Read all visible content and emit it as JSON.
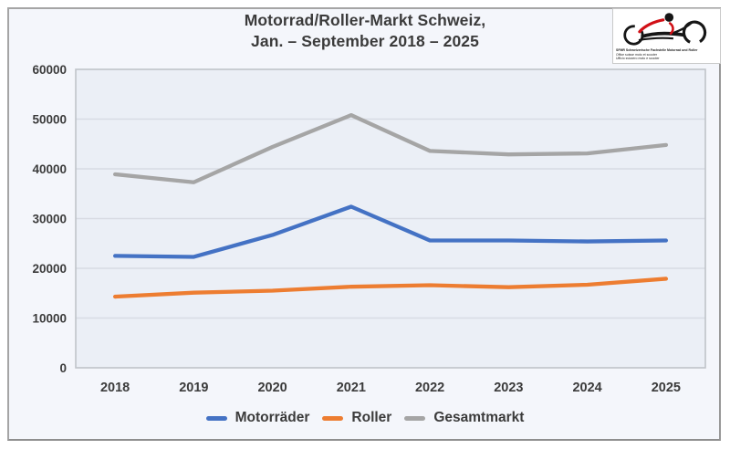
{
  "header": {
    "title_line1": "Motorrad/Roller-Markt Schweiz,",
    "title_line2": "Jan. – September 2018 – 2025"
  },
  "logo": {
    "name": "sfmr-motorcycle-logo",
    "red": "#d11016",
    "black": "#161616",
    "lines": [
      "SFMR Schweizerische Fachstelle Motorrad und Roller",
      "Office suisse moto et scooter",
      "Ufficio svizzero moto e scooter"
    ]
  },
  "chart_data": {
    "type": "line",
    "title": "Motorrad/Roller-Markt Schweiz, Jan. – September 2018 – 2025",
    "categories": [
      "2018",
      "2019",
      "2020",
      "2021",
      "2022",
      "2023",
      "2024",
      "2025"
    ],
    "series": [
      {
        "name": "Motorräder",
        "color": "#4472C4",
        "values": [
          22500,
          22300,
          26700,
          32400,
          25600,
          25600,
          25400,
          25600
        ]
      },
      {
        "name": "Roller",
        "color": "#ED7D31",
        "values": [
          14300,
          15100,
          15500,
          16300,
          16600,
          16200,
          16700,
          17900
        ]
      },
      {
        "name": "Gesamtmarkt",
        "color": "#A5A5A5",
        "values": [
          38900,
          37300,
          44400,
          50800,
          43600,
          42900,
          43100,
          44800
        ]
      }
    ],
    "xlabel": "",
    "ylabel": "",
    "ylim": [
      0,
      60000
    ],
    "ytick_step": 10000,
    "grid": true,
    "legend_position": "bottom"
  },
  "style_colors": {
    "plot_background": "#ebeff6",
    "frame_background": "#f4f6fb",
    "gridline": "#d8dbe3",
    "plot_border": "#bfc3c9",
    "text": "#3b3b3b"
  }
}
